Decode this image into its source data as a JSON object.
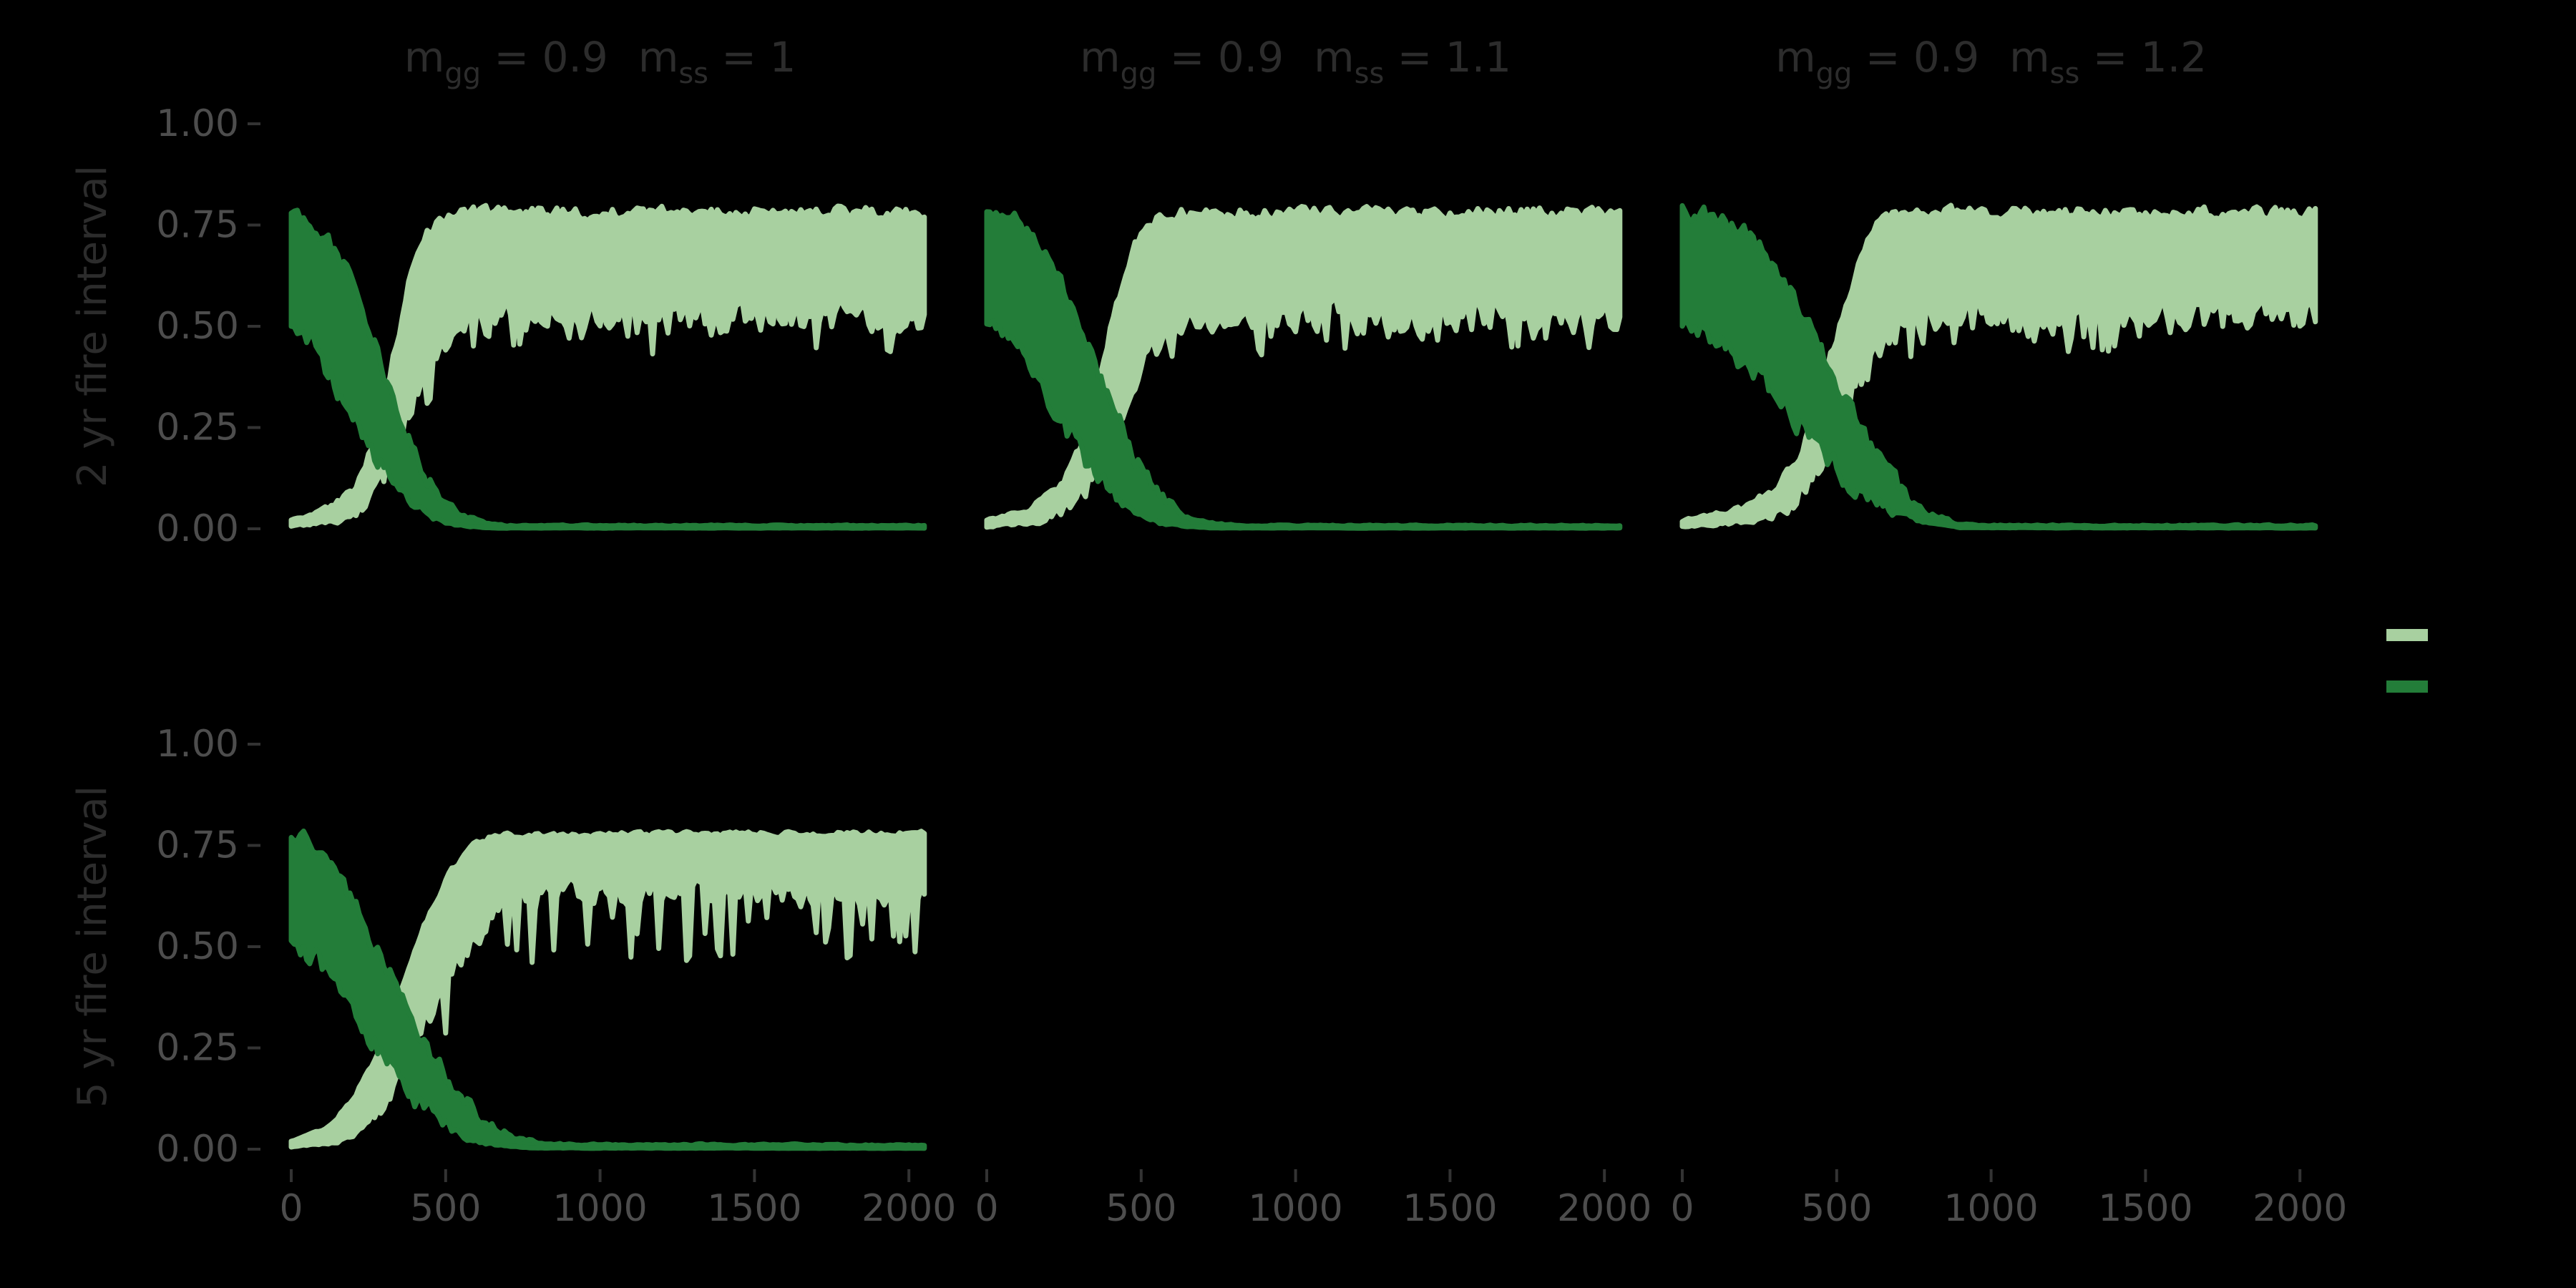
{
  "page": {
    "background": "#000000"
  },
  "chart_data": {
    "type": "area",
    "description": "Faceted stochastic simulation envelopes (ribbons) of two cover fractions vs time under different fire intervals and competition coefficients",
    "colors": {
      "light": "#a8d0a0",
      "dark": "#237d39",
      "axis_text": "#4d4d4d",
      "tick": "#333333",
      "strip_text": "#2c2c2c",
      "background": "#000000"
    },
    "facet_rows": [
      {
        "label": "2 yr fire interval"
      },
      {
        "label": "5 yr fire interval"
      }
    ],
    "facet_cols": [
      {
        "parts": [
          {
            "t": "m"
          },
          {
            "t": "gg",
            "sub": true
          },
          {
            "t": " = 0.9"
          },
          {
            "t": "m",
            "dx": 42
          },
          {
            "t": "ss",
            "sub": true
          },
          {
            "t": " = 1"
          }
        ]
      },
      {
        "parts": [
          {
            "t": "m"
          },
          {
            "t": "gg",
            "sub": true
          },
          {
            "t": " = 0.9"
          },
          {
            "t": "m",
            "dx": 42
          },
          {
            "t": "ss",
            "sub": true
          },
          {
            "t": " = 1.1"
          }
        ]
      },
      {
        "parts": [
          {
            "t": "m"
          },
          {
            "t": "gg",
            "sub": true
          },
          {
            "t": " = 0.9"
          },
          {
            "t": "m",
            "dx": 42
          },
          {
            "t": "ss",
            "sub": true
          },
          {
            "t": " = 1.2"
          }
        ]
      }
    ],
    "x_axis": {
      "tick_values": [
        0,
        500,
        1000,
        1500,
        2000
      ],
      "tick_labels": [
        "0",
        "500",
        "1000",
        "1500",
        "2000"
      ],
      "range": [
        0,
        2000
      ]
    },
    "y_axis": {
      "tick_values": [
        0,
        0.25,
        0.5,
        0.75,
        1.0
      ],
      "tick_labels": [
        "0.00",
        "0.25",
        "0.50",
        "0.75",
        "1.00"
      ],
      "range": [
        0,
        1
      ]
    },
    "legend": {
      "keys": [
        {
          "series": "light_green_ribbon"
        },
        {
          "series": "dark_green_ribbon"
        }
      ]
    },
    "panels": [
      {
        "row": 0,
        "col": 0,
        "has_data": true,
        "seed": 11,
        "light": {
          "top": [
            [
              0,
              0.02
            ],
            [
              120,
              0.05
            ],
            [
              200,
              0.1
            ],
            [
              260,
              0.2
            ],
            [
              320,
              0.38
            ],
            [
              380,
              0.6
            ],
            [
              430,
              0.72
            ],
            [
              480,
              0.77
            ],
            [
              540,
              0.78
            ],
            [
              2050,
              0.78
            ]
          ],
          "bottom": [
            [
              0,
              0.005
            ],
            [
              150,
              0.02
            ],
            [
              240,
              0.06
            ],
            [
              310,
              0.14
            ],
            [
              370,
              0.25
            ],
            [
              430,
              0.37
            ],
            [
              490,
              0.45
            ],
            [
              550,
              0.5
            ],
            [
              620,
              0.52
            ],
            [
              2050,
              0.52
            ]
          ],
          "top_jitter": 0.012,
          "bottom_jitter": 0.03,
          "drip_depth": 0.075,
          "drip_prob": 0.15
        },
        "dark": {
          "top": [
            [
              0,
              0.78
            ],
            [
              50,
              0.77
            ],
            [
              110,
              0.73
            ],
            [
              170,
              0.65
            ],
            [
              230,
              0.54
            ],
            [
              290,
              0.41
            ],
            [
              350,
              0.28
            ],
            [
              410,
              0.17
            ],
            [
              470,
              0.09
            ],
            [
              540,
              0.04
            ],
            [
              620,
              0.015
            ],
            [
              700,
              0.008
            ],
            [
              2050,
              0.008
            ]
          ],
          "bottom": [
            [
              0,
              0.5
            ],
            [
              60,
              0.46
            ],
            [
              130,
              0.38
            ],
            [
              200,
              0.28
            ],
            [
              270,
              0.18
            ],
            [
              340,
              0.1
            ],
            [
              410,
              0.05
            ],
            [
              480,
              0.02
            ],
            [
              560,
              0.007
            ],
            [
              650,
              0.002
            ],
            [
              2050,
              0.002
            ]
          ],
          "top_jitter": 0.018,
          "bottom_jitter": 0.022
        }
      },
      {
        "row": 0,
        "col": 1,
        "has_data": true,
        "seed": 12,
        "light": {
          "top": [
            [
              0,
              0.02
            ],
            [
              140,
              0.05
            ],
            [
              230,
              0.1
            ],
            [
              300,
              0.2
            ],
            [
              360,
              0.36
            ],
            [
              420,
              0.56
            ],
            [
              480,
              0.7
            ],
            [
              540,
              0.76
            ],
            [
              600,
              0.78
            ],
            [
              2050,
              0.78
            ]
          ],
          "bottom": [
            [
              0,
              0.005
            ],
            [
              180,
              0.02
            ],
            [
              280,
              0.06
            ],
            [
              350,
              0.14
            ],
            [
              420,
              0.25
            ],
            [
              480,
              0.36
            ],
            [
              550,
              0.45
            ],
            [
              620,
              0.5
            ],
            [
              690,
              0.52
            ],
            [
              2050,
              0.52
            ]
          ],
          "top_jitter": 0.012,
          "bottom_jitter": 0.03,
          "drip_depth": 0.075,
          "drip_prob": 0.15
        },
        "dark": {
          "top": [
            [
              0,
              0.78
            ],
            [
              80,
              0.77
            ],
            [
              150,
              0.72
            ],
            [
              220,
              0.63
            ],
            [
              290,
              0.52
            ],
            [
              360,
              0.39
            ],
            [
              430,
              0.26
            ],
            [
              500,
              0.15
            ],
            [
              570,
              0.08
            ],
            [
              650,
              0.03
            ],
            [
              740,
              0.012
            ],
            [
              830,
              0.008
            ],
            [
              2050,
              0.008
            ]
          ],
          "bottom": [
            [
              0,
              0.5
            ],
            [
              80,
              0.46
            ],
            [
              160,
              0.37
            ],
            [
              240,
              0.27
            ],
            [
              320,
              0.17
            ],
            [
              400,
              0.09
            ],
            [
              480,
              0.04
            ],
            [
              560,
              0.015
            ],
            [
              650,
              0.005
            ],
            [
              750,
              0.002
            ],
            [
              2050,
              0.002
            ]
          ],
          "top_jitter": 0.018,
          "bottom_jitter": 0.022
        }
      },
      {
        "row": 0,
        "col": 2,
        "has_data": true,
        "seed": 13,
        "light": {
          "top": [
            [
              0,
              0.02
            ],
            [
              200,
              0.05
            ],
            [
              300,
              0.1
            ],
            [
              380,
              0.19
            ],
            [
              450,
              0.34
            ],
            [
              520,
              0.53
            ],
            [
              580,
              0.68
            ],
            [
              640,
              0.76
            ],
            [
              700,
              0.78
            ],
            [
              2050,
              0.78
            ]
          ],
          "bottom": [
            [
              0,
              0.005
            ],
            [
              240,
              0.02
            ],
            [
              350,
              0.06
            ],
            [
              430,
              0.14
            ],
            [
              500,
              0.25
            ],
            [
              570,
              0.36
            ],
            [
              640,
              0.45
            ],
            [
              710,
              0.5
            ],
            [
              780,
              0.52
            ],
            [
              2050,
              0.52
            ]
          ],
          "top_jitter": 0.012,
          "bottom_jitter": 0.03,
          "drip_depth": 0.075,
          "drip_prob": 0.15
        },
        "dark": {
          "top": [
            [
              0,
              0.78
            ],
            [
              140,
              0.76
            ],
            [
              220,
              0.72
            ],
            [
              300,
              0.65
            ],
            [
              380,
              0.55
            ],
            [
              460,
              0.43
            ],
            [
              540,
              0.3
            ],
            [
              620,
              0.19
            ],
            [
              700,
              0.1
            ],
            [
              790,
              0.04
            ],
            [
              880,
              0.015
            ],
            [
              960,
              0.008
            ],
            [
              2050,
              0.008
            ]
          ],
          "bottom": [
            [
              0,
              0.5
            ],
            [
              100,
              0.47
            ],
            [
              200,
              0.41
            ],
            [
              300,
              0.33
            ],
            [
              400,
              0.24
            ],
            [
              500,
              0.15
            ],
            [
              600,
              0.08
            ],
            [
              700,
              0.035
            ],
            [
              800,
              0.012
            ],
            [
              900,
              0.003
            ],
            [
              2050,
              0.002
            ]
          ],
          "top_jitter": 0.02,
          "bottom_jitter": 0.024
        }
      },
      {
        "row": 1,
        "col": 0,
        "has_data": true,
        "seed": 21,
        "light": {
          "top": [
            [
              0,
              0.02
            ],
            [
              110,
              0.05
            ],
            [
              190,
              0.11
            ],
            [
              270,
              0.22
            ],
            [
              350,
              0.38
            ],
            [
              430,
              0.55
            ],
            [
              510,
              0.68
            ],
            [
              590,
              0.75
            ],
            [
              660,
              0.775
            ],
            [
              2050,
              0.78
            ]
          ],
          "bottom": [
            [
              0,
              0.005
            ],
            [
              150,
              0.02
            ],
            [
              250,
              0.07
            ],
            [
              330,
              0.15
            ],
            [
              410,
              0.27
            ],
            [
              490,
              0.4
            ],
            [
              570,
              0.5
            ],
            [
              650,
              0.57
            ],
            [
              740,
              0.61
            ],
            [
              820,
              0.63
            ],
            [
              2050,
              0.63
            ]
          ],
          "top_jitter": 0.005,
          "bottom_jitter": 0.025,
          "drip_depth": 0.16,
          "drip_prob": 0.16
        },
        "dark": {
          "top": [
            [
              0,
              0.78
            ],
            [
              70,
              0.75
            ],
            [
              140,
              0.68
            ],
            [
              220,
              0.58
            ],
            [
              300,
              0.46
            ],
            [
              380,
              0.34
            ],
            [
              460,
              0.23
            ],
            [
              540,
              0.14
            ],
            [
              620,
              0.07
            ],
            [
              720,
              0.03
            ],
            [
              830,
              0.012
            ],
            [
              2050,
              0.01
            ]
          ],
          "bottom": [
            [
              0,
              0.52
            ],
            [
              80,
              0.47
            ],
            [
              160,
              0.39
            ],
            [
              240,
              0.3
            ],
            [
              320,
              0.21
            ],
            [
              400,
              0.13
            ],
            [
              480,
              0.07
            ],
            [
              560,
              0.03
            ],
            [
              660,
              0.01
            ],
            [
              780,
              0.003
            ],
            [
              2050,
              0.002
            ]
          ],
          "top_jitter": 0.018,
          "bottom_jitter": 0.022
        }
      },
      {
        "row": 1,
        "col": 1,
        "has_data": false
      },
      {
        "row": 1,
        "col": 2,
        "has_data": false
      }
    ]
  }
}
